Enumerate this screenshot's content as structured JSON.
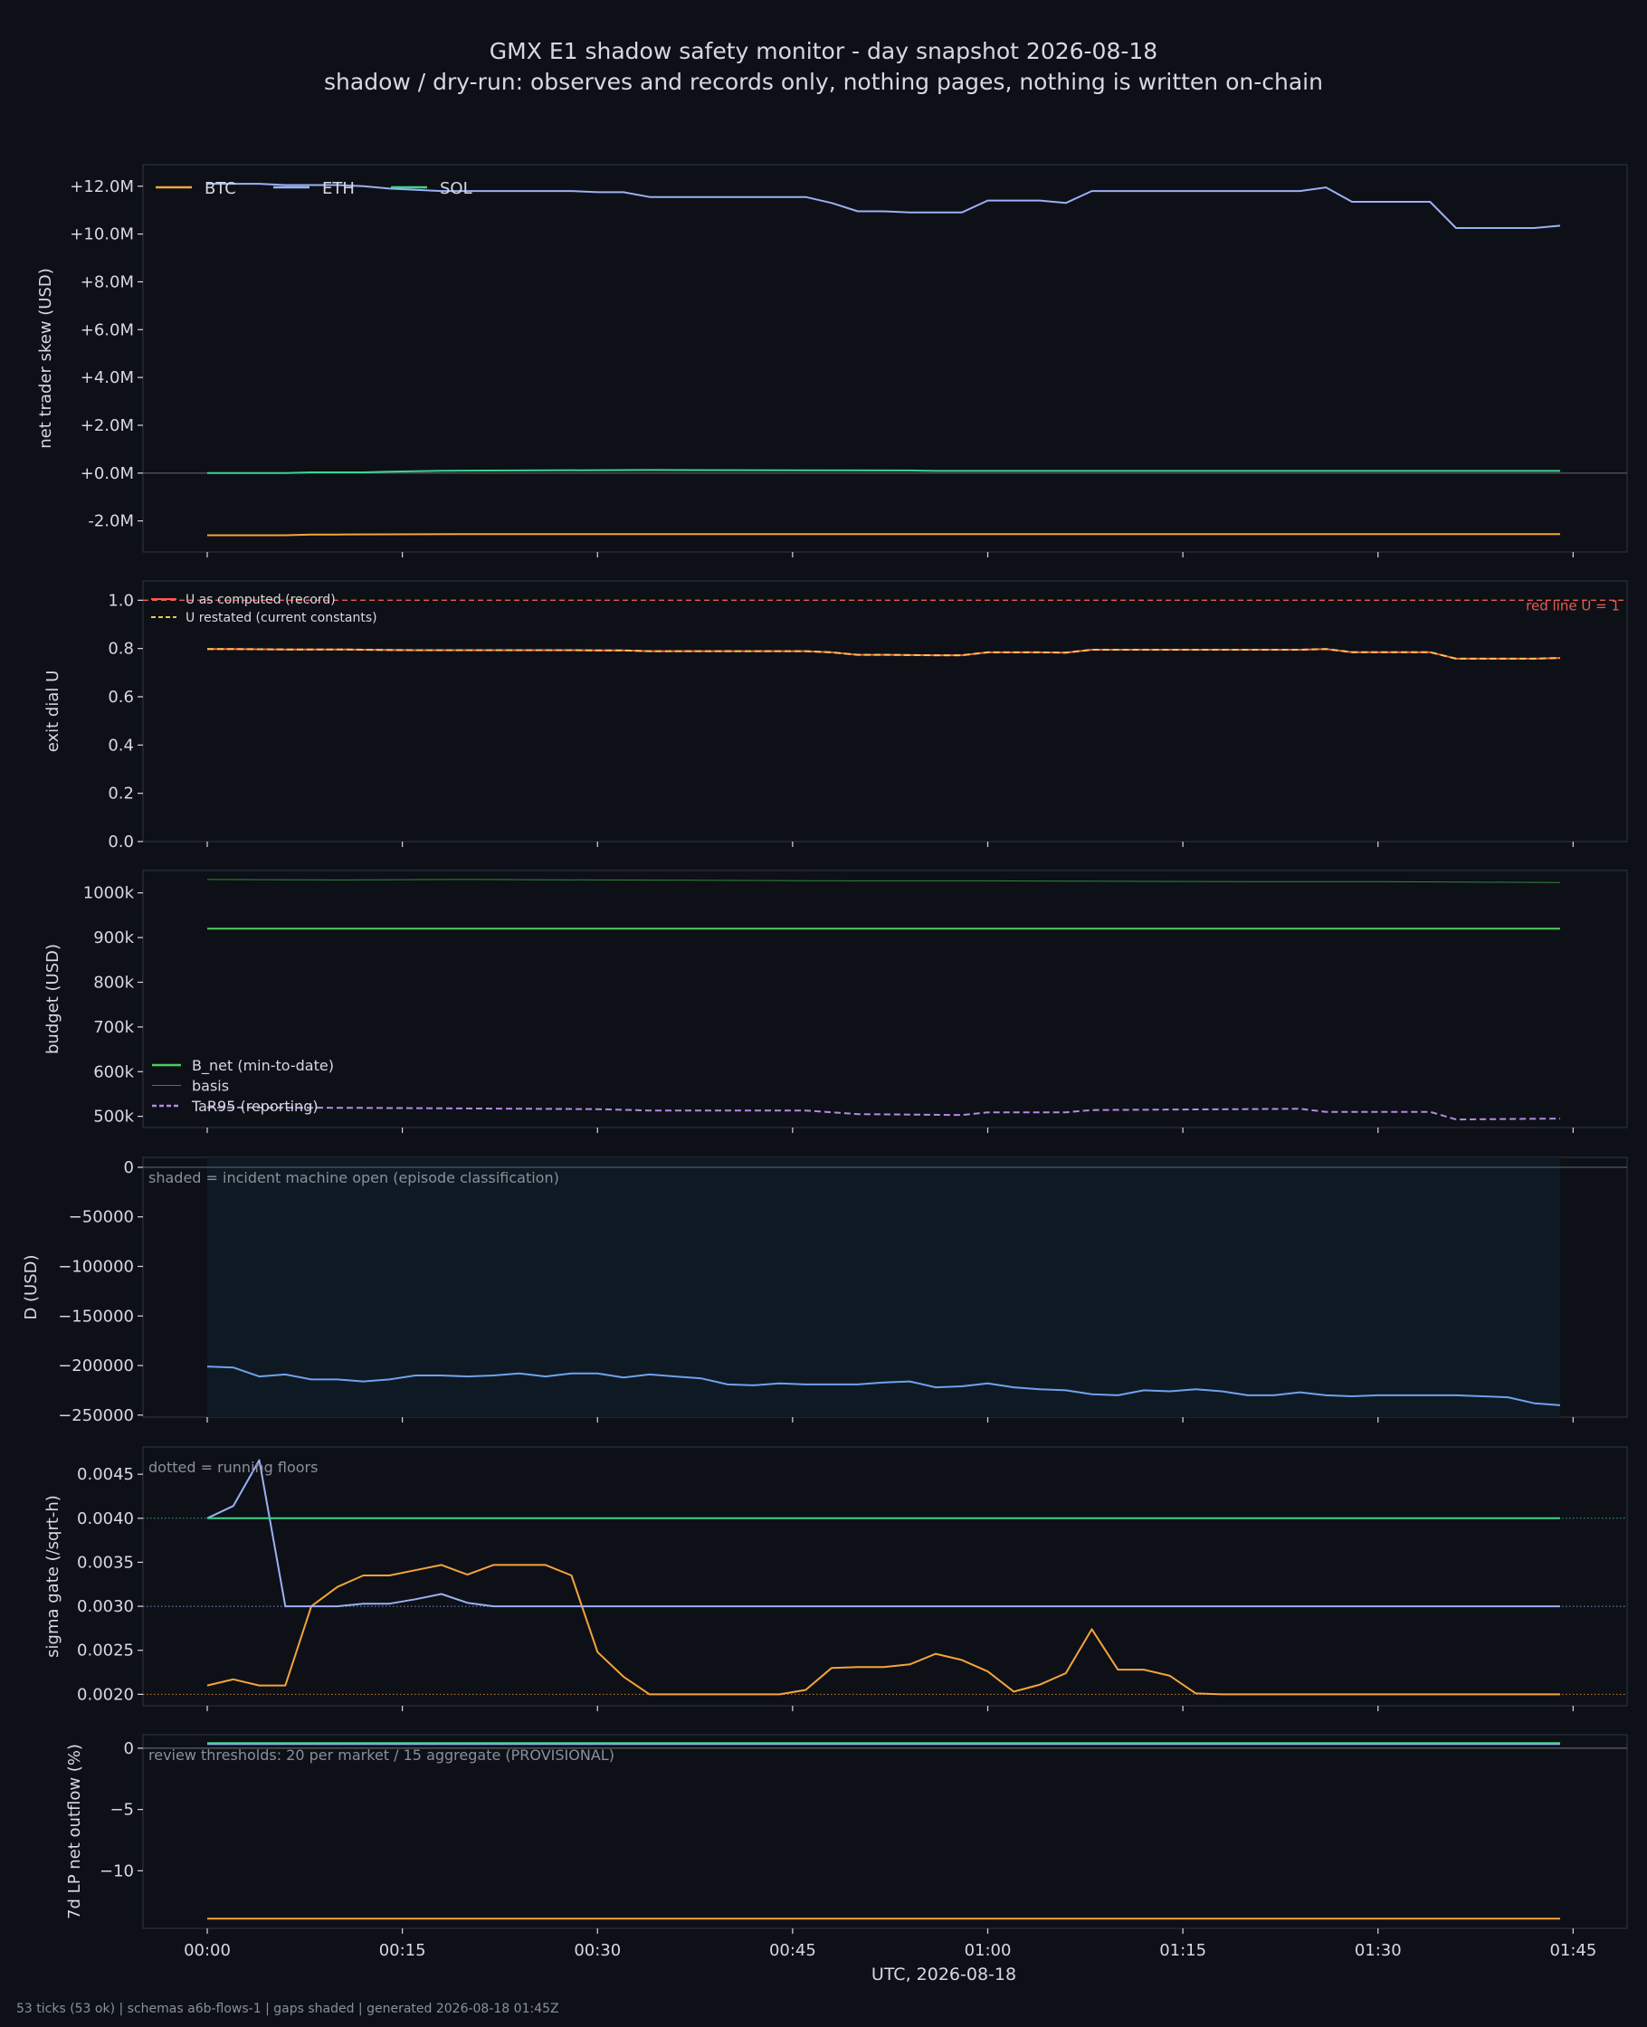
{
  "figure": {
    "title": "GMX E1 shadow safety monitor - day snapshot 2026-08-18",
    "subtitle": "shadow / dry-run: observes and records only, nothing pages, nothing is written on-chain",
    "xlabel": "UTC, 2026-08-18",
    "x_tick_labels": [
      "00:00",
      "00:15",
      "00:30",
      "00:45",
      "01:00",
      "01:15",
      "01:30",
      "01:45"
    ],
    "footer": "53 ticks (53 ok) | schemas a6b-flows-1 | gaps shaded | generated 2026-08-18 01:45Z"
  },
  "colors": {
    "background": "#0d1017",
    "btc": "#f5a43a",
    "eth": "#9bb0f5",
    "sol": "#3dd68c",
    "u_computed": "#ff5a4e",
    "u_restated": "#f2c84b",
    "redline": "#e85a4f",
    "b_net": "#4ccd5a",
    "basis": "#2c8a3a",
    "tar95": "#b48be0",
    "d": "#6fa2ec",
    "shade": "#0f1923"
  },
  "chart_data": [
    {
      "id": "skew",
      "type": "line",
      "ylabel": "net trader skew (USD)",
      "ylim": [
        -3300000,
        12900000
      ],
      "yticks": [
        -2000000,
        0,
        2000000,
        4000000,
        6000000,
        8000000,
        10000000,
        12000000
      ],
      "ytick_labels": [
        "-2.0M",
        "+0.0M",
        "+2.0M",
        "+4.0M",
        "+6.0M",
        "+8.0M",
        "+10.0M",
        "+12.0M"
      ],
      "legend": "top-left",
      "series": [
        {
          "name": "BTC",
          "color": "#f5a43a",
          "x": [
            0,
            6,
            8,
            10,
            20,
            44,
            104
          ],
          "y": [
            -2600000,
            -2600000,
            -2570000,
            -2570000,
            -2550000,
            -2550000,
            -2550000
          ]
        },
        {
          "name": "ETH",
          "color": "#9bb0f5",
          "x": [
            0,
            2,
            4,
            6,
            8,
            10,
            12,
            14,
            16,
            18,
            20,
            22,
            24,
            26,
            28,
            30,
            32,
            34,
            36,
            38,
            40,
            42,
            44,
            46,
            48,
            50,
            52,
            54,
            56,
            58,
            60,
            62,
            64,
            66,
            68,
            70,
            72,
            74,
            76,
            78,
            80,
            82,
            84,
            86,
            88,
            90,
            92,
            94,
            96,
            98,
            100,
            102,
            104
          ],
          "y": [
            12100000,
            12100000,
            12100000,
            12050000,
            12050000,
            12050000,
            12000000,
            11900000,
            11850000,
            11800000,
            11800000,
            11800000,
            11800000,
            11800000,
            11800000,
            11750000,
            11750000,
            11550000,
            11550000,
            11550000,
            11550000,
            11550000,
            11550000,
            11550000,
            11300000,
            10950000,
            10950000,
            10900000,
            10900000,
            10900000,
            11400000,
            11400000,
            11400000,
            11300000,
            11800000,
            11800000,
            11800000,
            11800000,
            11800000,
            11800000,
            11800000,
            11800000,
            11800000,
            11950000,
            11350000,
            11350000,
            11350000,
            11350000,
            10250000,
            10250000,
            10250000,
            10250000,
            10350000
          ]
        },
        {
          "name": "SOL",
          "color": "#3dd68c",
          "x": [
            0,
            6,
            8,
            12,
            14,
            18,
            30,
            34,
            54,
            56,
            104
          ],
          "y": [
            0,
            0,
            30000,
            30000,
            60000,
            100000,
            120000,
            130000,
            110000,
            90000,
            90000
          ]
        }
      ]
    },
    {
      "id": "exit_dial",
      "type": "line",
      "ylabel": "exit dial U",
      "ylim": [
        0,
        1.08
      ],
      "yticks": [
        0,
        0.2,
        0.4,
        0.6,
        0.8,
        1.0
      ],
      "ytick_labels": [
        "0.0",
        "0.2",
        "0.4",
        "0.6",
        "0.8",
        "1.0"
      ],
      "legend": "top-left",
      "annotation": "red line U = 1",
      "redline": 1.0,
      "series": [
        {
          "name": "U as computed (record)",
          "color": "#ff5a4e",
          "x": [
            0,
            2,
            4,
            6,
            8,
            10,
            12,
            14,
            16,
            18,
            20,
            22,
            24,
            26,
            28,
            30,
            32,
            34,
            36,
            38,
            40,
            42,
            44,
            46,
            48,
            50,
            52,
            54,
            56,
            58,
            60,
            62,
            64,
            66,
            68,
            70,
            72,
            74,
            76,
            78,
            80,
            82,
            84,
            86,
            88,
            90,
            92,
            94,
            96,
            98,
            100,
            102,
            104
          ],
          "y": [
            0.798,
            0.798,
            0.797,
            0.796,
            0.796,
            0.796,
            0.795,
            0.794,
            0.793,
            0.793,
            0.793,
            0.793,
            0.793,
            0.793,
            0.793,
            0.792,
            0.792,
            0.789,
            0.789,
            0.789,
            0.789,
            0.789,
            0.789,
            0.789,
            0.784,
            0.774,
            0.774,
            0.773,
            0.772,
            0.772,
            0.784,
            0.784,
            0.784,
            0.783,
            0.795,
            0.795,
            0.795,
            0.795,
            0.795,
            0.795,
            0.795,
            0.795,
            0.795,
            0.798,
            0.785,
            0.785,
            0.785,
            0.785,
            0.758,
            0.758,
            0.758,
            0.758,
            0.761
          ]
        },
        {
          "name": "U restated (current constants)",
          "color": "#f2c84b",
          "dashed": true,
          "x": [
            0,
            2,
            4,
            6,
            8,
            10,
            12,
            14,
            16,
            18,
            20,
            22,
            24,
            26,
            28,
            30,
            32,
            34,
            36,
            38,
            40,
            42,
            44,
            46,
            48,
            50,
            52,
            54,
            56,
            58,
            60,
            62,
            64,
            66,
            68,
            70,
            72,
            74,
            76,
            78,
            80,
            82,
            84,
            86,
            88,
            90,
            92,
            94,
            96,
            98,
            100,
            102,
            104
          ],
          "y": [
            0.798,
            0.798,
            0.797,
            0.796,
            0.796,
            0.796,
            0.795,
            0.794,
            0.793,
            0.793,
            0.793,
            0.793,
            0.793,
            0.793,
            0.793,
            0.792,
            0.792,
            0.789,
            0.789,
            0.789,
            0.789,
            0.789,
            0.789,
            0.789,
            0.784,
            0.774,
            0.774,
            0.773,
            0.772,
            0.772,
            0.784,
            0.784,
            0.784,
            0.783,
            0.795,
            0.795,
            0.795,
            0.795,
            0.795,
            0.795,
            0.795,
            0.795,
            0.795,
            0.798,
            0.785,
            0.785,
            0.785,
            0.785,
            0.758,
            0.758,
            0.758,
            0.758,
            0.761
          ]
        }
      ]
    },
    {
      "id": "budget",
      "type": "line",
      "ylabel": "budget (USD)",
      "ylim": [
        475000,
        1050000
      ],
      "yticks": [
        500000,
        600000,
        700000,
        800000,
        900000,
        1000000
      ],
      "ytick_labels": [
        "500k",
        "600k",
        "700k",
        "800k",
        "900k",
        "1000k"
      ],
      "legend": "bottom-left",
      "series": [
        {
          "name": "B_net (min-to-date)",
          "color": "#4ccd5a",
          "x": [
            0,
            104
          ],
          "y": [
            920000,
            920000
          ]
        },
        {
          "name": "basis",
          "color": "#2c8a3a",
          "x": [
            0,
            10,
            20,
            30,
            40,
            50,
            60,
            70,
            80,
            90,
            104
          ],
          "y": [
            1030000,
            1029000,
            1030000,
            1029000,
            1028000,
            1027000,
            1027000,
            1026000,
            1025000,
            1025000,
            1023000
          ]
        },
        {
          "name": "TaR95 (reporting)",
          "color": "#b48be0",
          "dashed": true,
          "x": [
            0,
            12,
            30,
            34,
            46,
            50,
            58,
            60,
            66,
            68,
            84,
            86,
            94,
            96,
            104
          ],
          "y": [
            520000,
            519000,
            516000,
            513000,
            513000,
            505000,
            503000,
            509000,
            509000,
            514000,
            517000,
            510000,
            510000,
            493000,
            495000
          ]
        }
      ]
    },
    {
      "id": "d",
      "type": "line",
      "ylabel": "D (USD)",
      "ylim": [
        -252000,
        10000
      ],
      "yticks": [
        -250000,
        -200000,
        -150000,
        -100000,
        -50000,
        0
      ],
      "ytick_labels": [
        "−250000",
        "−200000",
        "−150000",
        "−100000",
        "−50000",
        "0"
      ],
      "annotation": "shaded = incident machine open (episode classification)",
      "shaded_range": [
        0,
        104
      ],
      "series": [
        {
          "name": "D",
          "color": "#6fa2ec",
          "x": [
            0,
            2,
            4,
            6,
            8,
            10,
            12,
            14,
            16,
            18,
            20,
            22,
            24,
            26,
            28,
            30,
            32,
            34,
            36,
            38,
            40,
            42,
            44,
            46,
            48,
            50,
            52,
            54,
            56,
            58,
            60,
            62,
            64,
            66,
            68,
            70,
            72,
            74,
            76,
            78,
            80,
            82,
            84,
            86,
            88,
            90,
            92,
            94,
            96,
            98,
            100,
            102,
            104
          ],
          "y": [
            -201000,
            -202000,
            -211000,
            -209000,
            -214000,
            -214000,
            -216000,
            -214000,
            -210000,
            -210000,
            -211000,
            -210000,
            -208000,
            -211000,
            -208000,
            -208000,
            -212000,
            -209000,
            -211000,
            -213000,
            -219000,
            -220000,
            -218000,
            -219000,
            -219000,
            -219000,
            -217000,
            -216000,
            -222000,
            -221000,
            -218000,
            -222000,
            -224000,
            -225000,
            -229000,
            -230000,
            -225000,
            -226000,
            -224000,
            -226000,
            -230000,
            -230000,
            -227000,
            -230000,
            -231000,
            -230000,
            -230000,
            -230000,
            -230000,
            -231000,
            -232000,
            -238000,
            -240000
          ]
        }
      ]
    },
    {
      "id": "sigma_gate",
      "type": "line",
      "ylabel": "sigma gate (/sqrt-h)",
      "ylim": [
        0.00187,
        0.00481
      ],
      "yticks": [
        0.002,
        0.0025,
        0.003,
        0.0035,
        0.004,
        0.0045
      ],
      "ytick_labels": [
        "0.0020",
        "0.0025",
        "0.0030",
        "0.0035",
        "0.0040",
        "0.0045"
      ],
      "annotation": "dotted = running floors",
      "floors": [
        {
          "value": 0.004,
          "color": "#3dd68c"
        },
        {
          "value": 0.003,
          "color": "#9bb0f5"
        },
        {
          "value": 0.002,
          "color": "#f5a43a"
        }
      ],
      "series": [
        {
          "name": "BTC",
          "color": "#f5a43a",
          "x": [
            0,
            2,
            4,
            6,
            8,
            10,
            12,
            14,
            16,
            18,
            20,
            22,
            24,
            26,
            28,
            30,
            32,
            34,
            36,
            38,
            40,
            42,
            44,
            46,
            48,
            50,
            52,
            54,
            56,
            58,
            60,
            62,
            64,
            66,
            68,
            70,
            72,
            74,
            76,
            78,
            80,
            82,
            84,
            86,
            88,
            90,
            92,
            94,
            96,
            98,
            100,
            102,
            104
          ],
          "y": [
            0.0021,
            0.00217,
            0.0021,
            0.0021,
            0.003,
            0.00322,
            0.00335,
            0.00335,
            0.00341,
            0.00347,
            0.00336,
            0.00347,
            0.00347,
            0.00347,
            0.00335,
            0.00248,
            0.0022,
            0.002,
            0.002,
            0.002,
            0.002,
            0.002,
            0.002,
            0.00205,
            0.0023,
            0.00231,
            0.00231,
            0.00234,
            0.00246,
            0.00239,
            0.00226,
            0.00203,
            0.00211,
            0.00224,
            0.00274,
            0.00228,
            0.00228,
            0.00221,
            0.00201,
            0.002,
            0.002,
            0.002,
            0.002,
            0.002,
            0.002,
            0.002,
            0.002,
            0.002,
            0.002,
            0.002,
            0.002,
            0.002,
            0.002
          ]
        },
        {
          "name": "ETH",
          "color": "#9bb0f5",
          "x": [
            0,
            2,
            4,
            6,
            8,
            10,
            12,
            14,
            16,
            18,
            20,
            22,
            24,
            104
          ],
          "y": [
            0.004,
            0.00414,
            0.00466,
            0.003,
            0.003,
            0.003,
            0.00303,
            0.00303,
            0.00308,
            0.00314,
            0.00304,
            0.003,
            0.003,
            0.003
          ]
        },
        {
          "name": "SOL",
          "color": "#3dd68c",
          "x": [
            0,
            104
          ],
          "y": [
            0.004,
            0.004
          ]
        }
      ]
    },
    {
      "id": "lp_outflow",
      "type": "line",
      "ylabel": "7d LP net outflow (%)",
      "ylim": [
        -14.7,
        1.1
      ],
      "yticks": [
        -10,
        -5,
        0
      ],
      "ytick_labels": [
        "−10",
        "−5",
        "0"
      ],
      "annotation": "review thresholds: 20 per market / 15 aggregate (PROVISIONAL)",
      "series": [
        {
          "name": "ETH",
          "color": "#9bb0f5",
          "x": [
            0,
            104
          ],
          "y": [
            0.35,
            0.35
          ]
        },
        {
          "name": "SOL",
          "color": "#3dd68c",
          "x": [
            0,
            104
          ],
          "y": [
            0.42,
            0.42
          ]
        },
        {
          "name": "BTC",
          "color": "#f5a43a",
          "x": [
            0,
            104
          ],
          "y": [
            -13.9,
            -13.9
          ]
        }
      ]
    }
  ]
}
